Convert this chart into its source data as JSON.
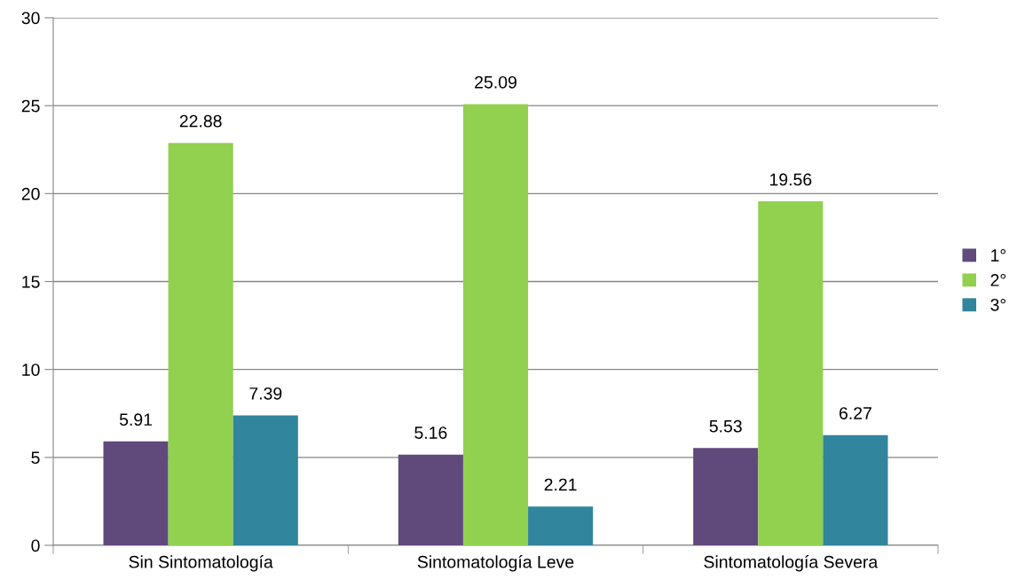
{
  "chart_data": {
    "type": "bar",
    "categories": [
      "Sin Sintomatología",
      "Sintomatología Leve",
      "Sintomatología Severa"
    ],
    "series": [
      {
        "name": "1°",
        "color": "#604a7b",
        "values": [
          5.91,
          5.16,
          5.53
        ]
      },
      {
        "name": "2°",
        "color": "#92d050",
        "values": [
          22.88,
          25.09,
          19.56
        ]
      },
      {
        "name": "3°",
        "color": "#31859c",
        "values": [
          7.39,
          2.21,
          6.27
        ]
      }
    ],
    "ylim": [
      0,
      30
    ],
    "yticks": [
      0,
      5,
      10,
      15,
      20,
      25,
      30
    ],
    "grid": "y",
    "legend": "right",
    "data_labels": true
  }
}
